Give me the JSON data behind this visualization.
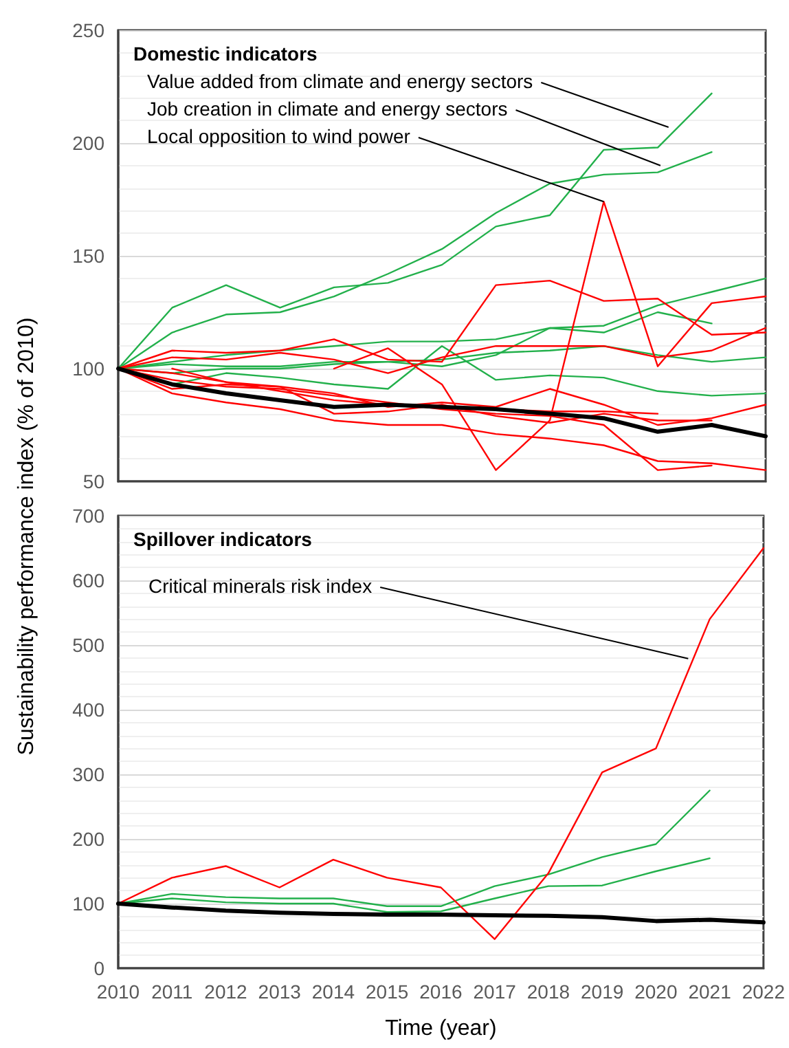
{
  "chart_data": [
    {
      "type": "line",
      "title": "Domestic indicators",
      "ylabel": "Sustainability performance index (% of 2010)",
      "x": [
        2010,
        2011,
        2012,
        2013,
        2014,
        2015,
        2016,
        2017,
        2018,
        2019,
        2020,
        2021,
        2022
      ],
      "xlim": [
        2010,
        2022
      ],
      "xticks": [
        2010,
        2011,
        2012,
        2013,
        2014,
        2015,
        2016,
        2017,
        2018,
        2019,
        2020,
        2021,
        2022
      ],
      "ylim": [
        50,
        250
      ],
      "yticks": [
        50,
        100,
        150,
        200,
        250
      ],
      "grid": "y",
      "marker": "none",
      "line_style": "solid",
      "tick_labels": "y",
      "series": [
        {
          "color": "#22b04b",
          "values": [
            100,
            127,
            137,
            127,
            136,
            138,
            146,
            163,
            168,
            197,
            198,
            222,
            null
          ]
        },
        {
          "color": "#22b04b",
          "values": [
            100,
            116,
            124,
            125,
            132,
            142,
            153,
            169,
            182,
            186,
            187,
            196,
            null
          ]
        },
        {
          "color": "#22b04b",
          "values": [
            100,
            103,
            106,
            108,
            110,
            112,
            112,
            113,
            118,
            119,
            128,
            134,
            140
          ]
        },
        {
          "color": "#22b04b",
          "values": [
            100,
            102,
            101,
            101,
            103,
            103,
            101,
            106,
            118,
            116,
            125,
            120,
            null
          ]
        },
        {
          "color": "#22b04b",
          "values": [
            100,
            98,
            100,
            100,
            102,
            103,
            104,
            107,
            108,
            110,
            106,
            103,
            105
          ]
        },
        {
          "color": "#22b04b",
          "values": [
            100,
            93,
            98,
            96,
            93,
            91,
            110,
            95,
            97,
            96,
            90,
            88,
            89
          ]
        },
        {
          "color": "#ff0000",
          "values": [
            100,
            108,
            107,
            108,
            113,
            104,
            103,
            137,
            139,
            130,
            131,
            115,
            116
          ]
        },
        {
          "color": "#ff0000",
          "values": [
            null,
            null,
            null,
            null,
            100,
            109,
            93,
            55,
            77,
            174,
            101,
            129,
            132
          ]
        },
        {
          "color": "#ff0000",
          "values": [
            100,
            105,
            104,
            107,
            104,
            98,
            105,
            110,
            110,
            110,
            105,
            108,
            118
          ]
        },
        {
          "color": "#ff0000",
          "values": [
            null,
            100,
            94,
            92,
            89,
            83,
            85,
            83,
            91,
            84,
            75,
            78,
            84
          ]
        },
        {
          "color": "#ff0000",
          "values": [
            100,
            89,
            85,
            82,
            77,
            75,
            75,
            71,
            69,
            66,
            59,
            58,
            55
          ]
        },
        {
          "color": "#ff0000",
          "values": [
            100,
            95,
            92,
            91,
            88,
            85,
            82,
            80,
            79,
            75,
            55,
            57,
            null
          ]
        },
        {
          "color": "#ff0000",
          "values": [
            100,
            91,
            93,
            92,
            80,
            81,
            84,
            79,
            76,
            80,
            77,
            77,
            null
          ]
        },
        {
          "color": "#ff0000",
          "values": [
            100,
            98,
            94,
            90,
            86,
            84,
            83,
            82,
            81,
            81,
            80,
            null,
            null
          ]
        },
        {
          "color": "#000000",
          "values": [
            100,
            93,
            89,
            86,
            83,
            84,
            83,
            82,
            80,
            78,
            72,
            75,
            70
          ]
        }
      ],
      "annotations": [
        {
          "text": "Value added from climate and energy sectors",
          "x": 2020.2,
          "y": 207
        },
        {
          "text": "Job creation in climate and energy sectors",
          "x": 2020.05,
          "y": 190
        },
        {
          "text": "Local opposition to wind power",
          "x": 2019,
          "y": 174
        }
      ]
    },
    {
      "type": "line",
      "title": "Spillover indicators",
      "xlabel": "Time (year)",
      "x": [
        2010,
        2011,
        2012,
        2013,
        2014,
        2015,
        2016,
        2017,
        2018,
        2019,
        2020,
        2021,
        2022
      ],
      "xlim": [
        2010,
        2022
      ],
      "xticks": [
        2010,
        2011,
        2012,
        2013,
        2014,
        2015,
        2016,
        2017,
        2018,
        2019,
        2020,
        2021,
        2022
      ],
      "ylim": [
        0,
        700
      ],
      "yticks": [
        0,
        100,
        200,
        300,
        400,
        500,
        600,
        700
      ],
      "grid": "y",
      "marker": "none",
      "line_style": "solid",
      "series": [
        {
          "color": "#22b04b",
          "values": [
            100,
            115,
            110,
            108,
            108,
            96,
            96,
            127,
            145,
            172,
            192,
            275,
            null
          ]
        },
        {
          "color": "#22b04b",
          "values": [
            100,
            108,
            102,
            100,
            100,
            87,
            88,
            108,
            127,
            128,
            150,
            170,
            null
          ]
        },
        {
          "color": "#ff0000",
          "values": [
            100,
            140,
            158,
            125,
            168,
            140,
            125,
            45,
            147,
            303,
            340,
            540,
            650
          ]
        },
        {
          "color": "#000000",
          "values": [
            100,
            94,
            89,
            86,
            84,
            83,
            83,
            82,
            81,
            79,
            73,
            75,
            71
          ]
        }
      ],
      "annotations": [
        {
          "text": "Critical minerals risk index",
          "x": 2020.6,
          "y": 479
        }
      ]
    }
  ]
}
